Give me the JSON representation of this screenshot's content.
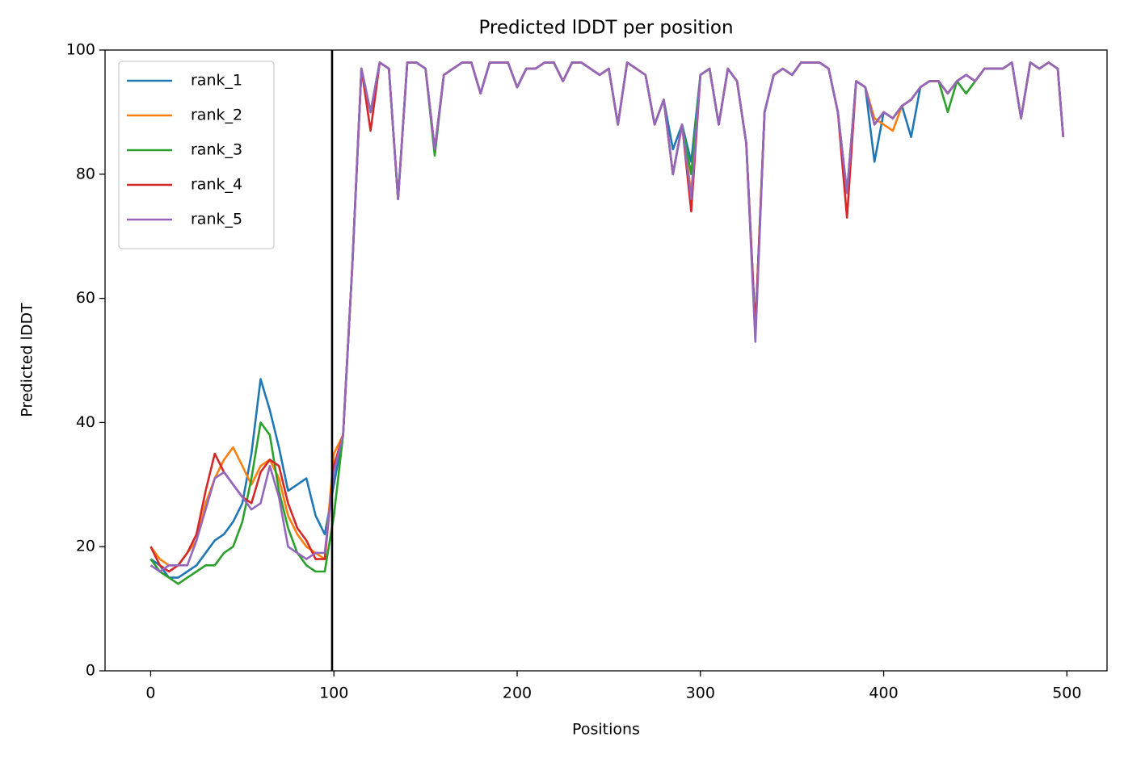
{
  "chart_data": {
    "type": "line",
    "title": "Predicted lDDT per position",
    "xlabel": "Positions",
    "ylabel": "Predicted lDDT",
    "x": [
      0,
      5,
      10,
      15,
      20,
      25,
      30,
      35,
      40,
      45,
      50,
      55,
      60,
      65,
      70,
      75,
      80,
      85,
      90,
      95,
      100,
      105,
      110,
      115,
      120,
      125,
      130,
      135,
      140,
      145,
      150,
      155,
      160,
      165,
      170,
      175,
      180,
      185,
      190,
      195,
      200,
      205,
      210,
      215,
      220,
      225,
      230,
      235,
      240,
      245,
      250,
      255,
      260,
      265,
      270,
      275,
      280,
      285,
      290,
      295,
      300,
      305,
      310,
      315,
      320,
      325,
      330,
      335,
      340,
      345,
      350,
      355,
      360,
      365,
      370,
      375,
      380,
      385,
      390,
      395,
      400,
      405,
      410,
      415,
      420,
      425,
      430,
      435,
      440,
      445,
      450,
      455,
      460,
      465,
      470,
      475,
      480,
      485,
      490,
      495,
      498
    ],
    "series": [
      {
        "name": "rank_1",
        "color": "#1f77b4",
        "values": [
          18,
          17,
          15,
          15,
          16,
          17,
          19,
          21,
          22,
          24,
          27,
          35,
          47,
          42,
          36,
          29,
          30,
          31,
          25,
          22,
          30,
          38,
          65,
          97,
          90,
          98,
          97,
          76,
          98,
          98,
          97,
          84,
          96,
          97,
          98,
          98,
          93,
          98,
          98,
          98,
          94,
          97,
          97,
          98,
          98,
          95,
          98,
          98,
          97,
          96,
          97,
          88,
          98,
          97,
          96,
          88,
          92,
          84,
          88,
          82,
          96,
          97,
          88,
          97,
          95,
          85,
          55,
          90,
          96,
          97,
          96,
          98,
          98,
          98,
          97,
          90,
          77,
          95,
          94,
          82,
          90,
          89,
          91,
          86,
          94,
          95,
          95,
          93,
          95,
          96,
          95,
          97,
          97,
          97,
          98,
          89,
          98,
          97,
          98,
          97,
          86
        ]
      },
      {
        "name": "rank_2",
        "color": "#ff7f0e",
        "values": [
          20,
          18,
          17,
          17,
          19,
          21,
          27,
          31,
          34,
          36,
          33,
          30,
          33,
          34,
          31,
          25,
          22,
          20,
          19,
          18,
          35,
          38,
          65,
          97,
          90,
          98,
          97,
          76,
          98,
          98,
          97,
          84,
          96,
          97,
          98,
          98,
          93,
          98,
          98,
          98,
          94,
          97,
          97,
          98,
          98,
          95,
          98,
          98,
          97,
          96,
          97,
          88,
          98,
          97,
          96,
          88,
          92,
          80,
          88,
          77,
          96,
          97,
          88,
          97,
          95,
          85,
          55,
          90,
          96,
          97,
          96,
          98,
          98,
          98,
          97,
          90,
          77,
          95,
          94,
          89,
          88,
          87,
          91,
          92,
          94,
          95,
          95,
          93,
          95,
          96,
          95,
          97,
          97,
          97,
          98,
          89,
          98,
          97,
          98,
          97,
          86
        ]
      },
      {
        "name": "rank_3",
        "color": "#2ca02c",
        "values": [
          18,
          16,
          15,
          14,
          15,
          16,
          17,
          17,
          19,
          20,
          24,
          31,
          40,
          38,
          29,
          23,
          19,
          17,
          16,
          16,
          25,
          38,
          65,
          97,
          90,
          98,
          97,
          76,
          98,
          98,
          97,
          83,
          96,
          97,
          98,
          98,
          93,
          98,
          98,
          98,
          94,
          97,
          97,
          98,
          98,
          95,
          98,
          98,
          97,
          96,
          97,
          88,
          98,
          97,
          96,
          88,
          92,
          80,
          88,
          80,
          96,
          97,
          88,
          97,
          95,
          85,
          55,
          90,
          96,
          97,
          96,
          98,
          98,
          98,
          97,
          90,
          77,
          95,
          94,
          88,
          90,
          89,
          91,
          92,
          94,
          95,
          95,
          90,
          95,
          93,
          95,
          97,
          97,
          97,
          98,
          89,
          98,
          97,
          98,
          97,
          86
        ]
      },
      {
        "name": "rank_4",
        "color": "#d62728",
        "values": [
          20,
          17,
          16,
          17,
          19,
          22,
          29,
          35,
          32,
          30,
          28,
          27,
          32,
          34,
          33,
          27,
          23,
          21,
          18,
          18,
          33,
          38,
          65,
          97,
          87,
          98,
          97,
          76,
          98,
          98,
          97,
          84,
          96,
          97,
          98,
          98,
          93,
          98,
          98,
          98,
          94,
          97,
          97,
          98,
          98,
          95,
          98,
          98,
          97,
          96,
          97,
          88,
          98,
          97,
          96,
          88,
          92,
          80,
          88,
          74,
          96,
          97,
          88,
          97,
          95,
          85,
          55,
          90,
          96,
          97,
          96,
          98,
          98,
          98,
          97,
          90,
          73,
          95,
          94,
          88,
          90,
          89,
          91,
          92,
          94,
          95,
          95,
          93,
          95,
          96,
          95,
          97,
          97,
          97,
          98,
          89,
          98,
          97,
          98,
          97,
          86
        ]
      },
      {
        "name": "rank_5",
        "color": "#9467bd",
        "values": [
          17,
          16,
          17,
          17,
          17,
          21,
          26,
          31,
          32,
          30,
          28,
          26,
          27,
          33,
          28,
          20,
          19,
          18,
          19,
          19,
          32,
          38,
          65,
          97,
          90,
          98,
          97,
          76,
          98,
          98,
          97,
          84,
          96,
          97,
          98,
          98,
          93,
          98,
          98,
          98,
          94,
          97,
          97,
          98,
          98,
          95,
          98,
          98,
          97,
          96,
          97,
          88,
          98,
          97,
          96,
          88,
          92,
          80,
          88,
          76,
          96,
          97,
          88,
          97,
          95,
          85,
          53,
          90,
          96,
          97,
          96,
          98,
          98,
          98,
          97,
          90,
          77,
          95,
          94,
          88,
          90,
          89,
          91,
          92,
          94,
          95,
          95,
          93,
          95,
          96,
          95,
          97,
          97,
          97,
          98,
          89,
          98,
          97,
          98,
          97,
          86
        ]
      }
    ],
    "vline": {
      "x": 99,
      "color": "#000000"
    },
    "xlim": [
      -24.9,
      521.9
    ],
    "ylim": [
      0,
      100
    ],
    "xticks": [
      0,
      100,
      200,
      300,
      400,
      500
    ],
    "yticks": [
      0,
      20,
      40,
      60,
      80,
      100
    ],
    "legend": "upper left"
  }
}
